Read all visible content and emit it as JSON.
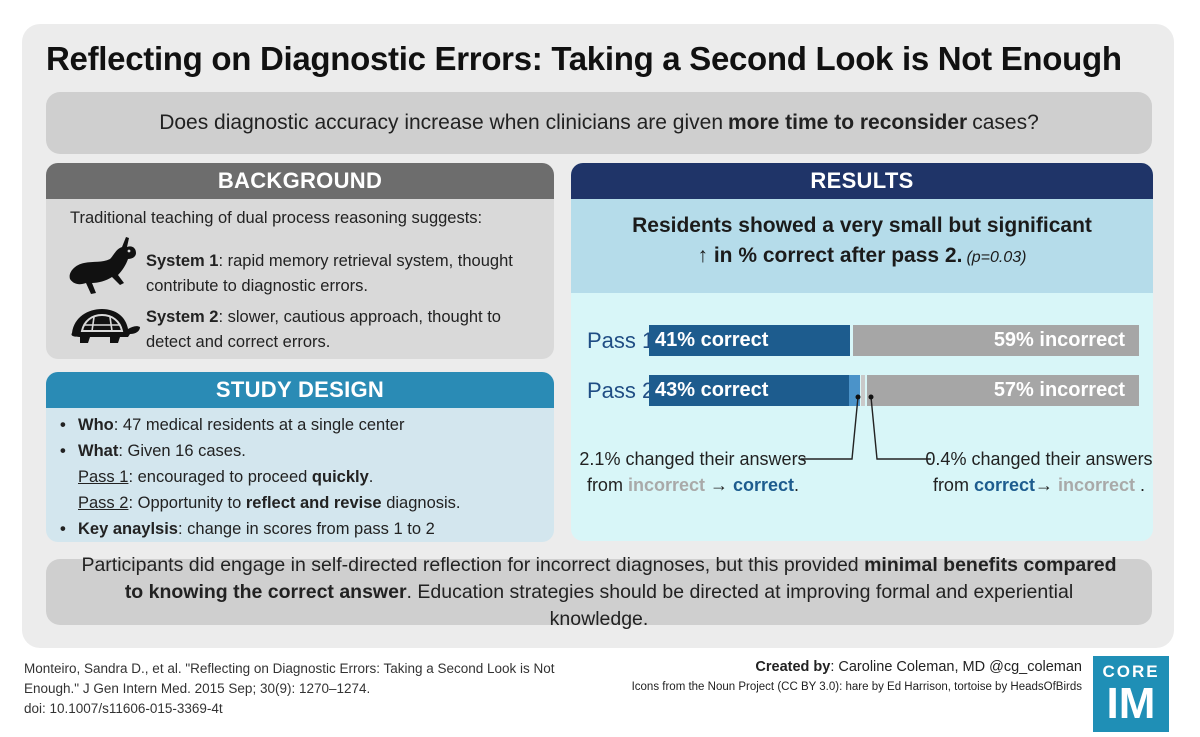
{
  "title": "Reflecting on Diagnostic Errors: Taking a Second Look is Not Enough",
  "question": {
    "pre": "Does diagnostic accuracy increase when clinicians are given",
    "bold": "more time to reconsider",
    "post": "cases?"
  },
  "background": {
    "heading": "BACKGROUND",
    "intro": "Traditional teaching of dual process reasoning suggests:",
    "system1_label": "System 1",
    "system1_text": ": rapid memory retrieval system, thought contribute to diagnostic errors.",
    "system2_label": "System 2",
    "system2_text": ": slower, cautious approach, thought to detect and correct errors.",
    "icons": [
      "hare-icon",
      "tortoise-icon"
    ]
  },
  "study_design": {
    "heading": "STUDY DESIGN",
    "bullet": "•",
    "who_label": "Who",
    "who_text": ": 47 medical residents at a single center",
    "what_label": "What",
    "what_text": ": Given 16 cases.",
    "pass1_label": "Pass 1",
    "pass1_pre": ": encouraged to proceed ",
    "pass1_bold": "quickly",
    "pass1_post": ".",
    "pass2_label": "Pass 2",
    "pass2_pre": ": Opportunity to ",
    "pass2_bold": "reflect and revise",
    "pass2_post": " diagnosis.",
    "key_label": "Key anaylsis",
    "key_text": ": change in scores from pass 1 to 2"
  },
  "results": {
    "heading": "RESULTS",
    "summary_line1": "Residents showed a very small but significant",
    "summary_line2": "↑ in % correct after pass 2.",
    "p_value": "(p=0.03)",
    "pass1": {
      "label": "Pass 1",
      "correct_pct": 41,
      "correct_label": "41% correct",
      "incorrect_label": "59% incorrect"
    },
    "pass2": {
      "label": "Pass 2",
      "correct_pct": 43,
      "correct_label": "43% correct",
      "incorrect_label": "57% incorrect",
      "changed_to_correct_pct": 2.1,
      "changed_to_incorrect_pct": 0.4
    },
    "note_left_line1": "2.1% changed their answers",
    "note_left_from": "from",
    "note_left_incorrect": "incorrect",
    "note_left_arrow": "→",
    "note_left_correct": "correct",
    "note_left_end": ".",
    "note_right_line1": "0.4% changed their answers",
    "note_right_from": "from",
    "note_right_correct": "correct",
    "note_right_arrow": "→",
    "note_right_incorrect": "incorrect",
    "note_right_end": " .",
    "colors": {
      "correct": "#1d5c8e",
      "changed": "#4b93c9",
      "incorrect": "#a6a6a6"
    }
  },
  "conclusion": {
    "pre": "Participants did engage in self-directed reflection for incorrect diagnoses, but this provided",
    "bold": "minimal benefits compared to knowing the correct answer",
    "post": ". Education strategies should be directed at improving formal and experiential knowledge."
  },
  "citation": {
    "line1": "Monteiro, Sandra D., et al. \"Reflecting on Diagnostic Errors: Taking a Second Look is Not",
    "line2": "Enough.\" J Gen Intern Med. 2015 Sep; 30(9): 1270–1274.",
    "line3": "doi: 10.1007/s11606-015-3369-4t"
  },
  "credits": {
    "created_label": "Created by",
    "created_text": ": Caroline Coleman, MD @cg_coleman",
    "icons_text": "Icons from the Noun Project (CC BY 3.0): hare by Ed Harrison, tortoise by HeadsOfBirds"
  },
  "logo": {
    "top": "CORE",
    "bottom": "IM"
  }
}
